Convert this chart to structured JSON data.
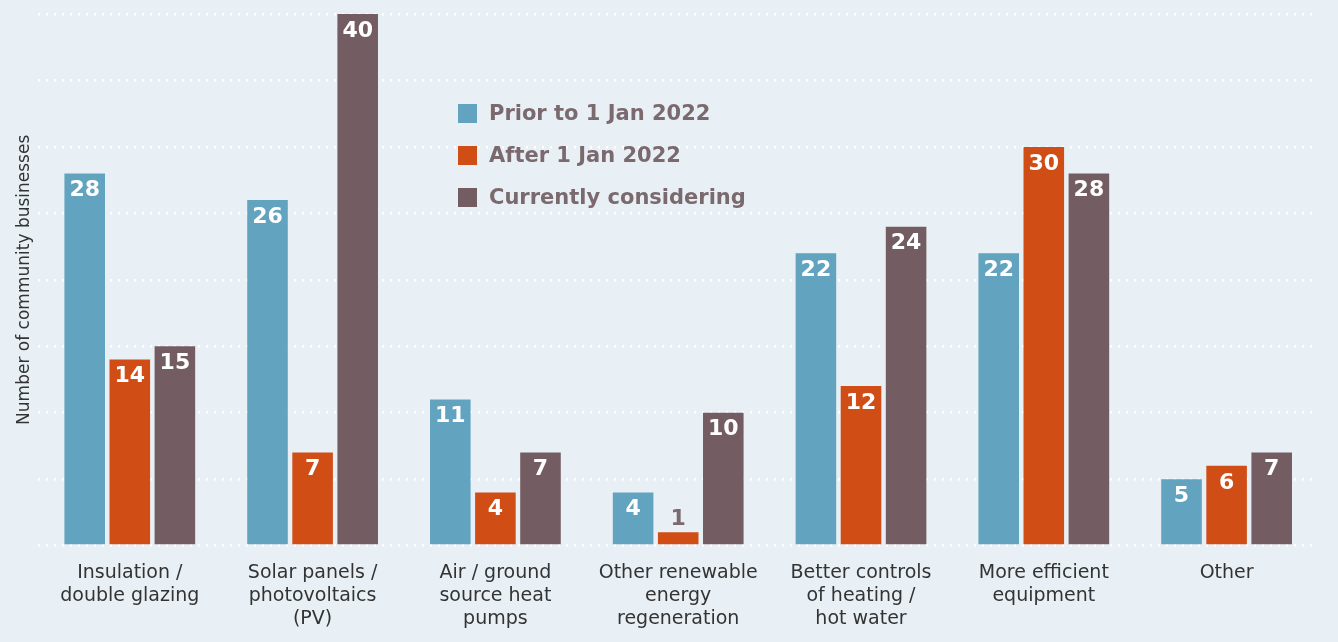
{
  "chart_data": {
    "type": "bar",
    "ylabel": "Number of community businesses",
    "categories": [
      "Insulation / double glazing",
      "Solar panels / photovoltaics (PV)",
      "Air / ground source heat pumps",
      "Other renewable energy regeneration",
      "Better controls of heating / hot water",
      "More efficient equipment",
      "Other"
    ],
    "series": [
      {
        "name": "Prior to 1 Jan 2022",
        "color": "#62a3bf",
        "values": [
          28,
          26,
          11,
          4,
          22,
          22,
          5
        ]
      },
      {
        "name": "After 1 Jan 2022",
        "color": "#d04e16",
        "values": [
          14,
          7,
          4,
          1,
          12,
          30,
          6
        ]
      },
      {
        "name": "Currently considering",
        "color": "#735d63",
        "values": [
          15,
          40,
          7,
          10,
          24,
          28,
          7
        ]
      }
    ],
    "ylim": [
      0,
      40
    ],
    "tick_labels": "x",
    "grid": "y",
    "line_style": "dotted",
    "legend": "top",
    "data_labels": true
  }
}
